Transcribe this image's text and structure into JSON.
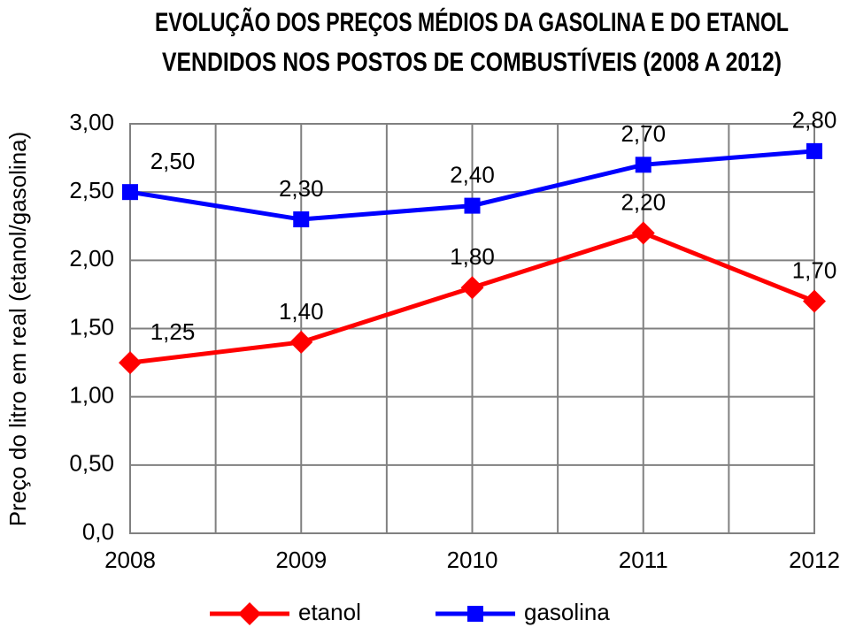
{
  "chart_data": {
    "type": "line",
    "title": "EVOLUÇÃO DOS PREÇOS MÉDIOS DA GASOLINA E DO ETANOL\nVENDIDOS NOS POSTOS DE COMBUSTÍVEIS (2008 A 2012)",
    "y_label": "Preço do litro em real (etanol/gasolina)",
    "categories": [
      "2008",
      "2009",
      "2010",
      "2011",
      "2012"
    ],
    "series": [
      {
        "name": "etanol",
        "color": "#ff0000",
        "marker": "diamond",
        "values": [
          1.25,
          1.4,
          1.8,
          2.2,
          1.7
        ],
        "value_labels": [
          "1,25",
          "1,40",
          "1,80",
          "2,20",
          "1,70"
        ]
      },
      {
        "name": "gasolina",
        "color": "#0000ff",
        "marker": "square",
        "values": [
          2.5,
          2.3,
          2.4,
          2.7,
          2.8
        ],
        "value_labels": [
          "2,50",
          "2,30",
          "2,40",
          "2,70",
          "2,80"
        ]
      }
    ],
    "ylim": [
      0,
      3
    ],
    "yticks": [
      {
        "value": 0,
        "label": "0,0"
      },
      {
        "value": 0.5,
        "label": "0,50"
      },
      {
        "value": 1,
        "label": "1,00"
      },
      {
        "value": 1.5,
        "label": "1,50"
      },
      {
        "value": 2,
        "label": "2,00"
      },
      {
        "value": 2.5,
        "label": "2,50"
      },
      {
        "value": 3,
        "label": "3,00"
      }
    ],
    "grid": true,
    "legend": "bottom"
  }
}
